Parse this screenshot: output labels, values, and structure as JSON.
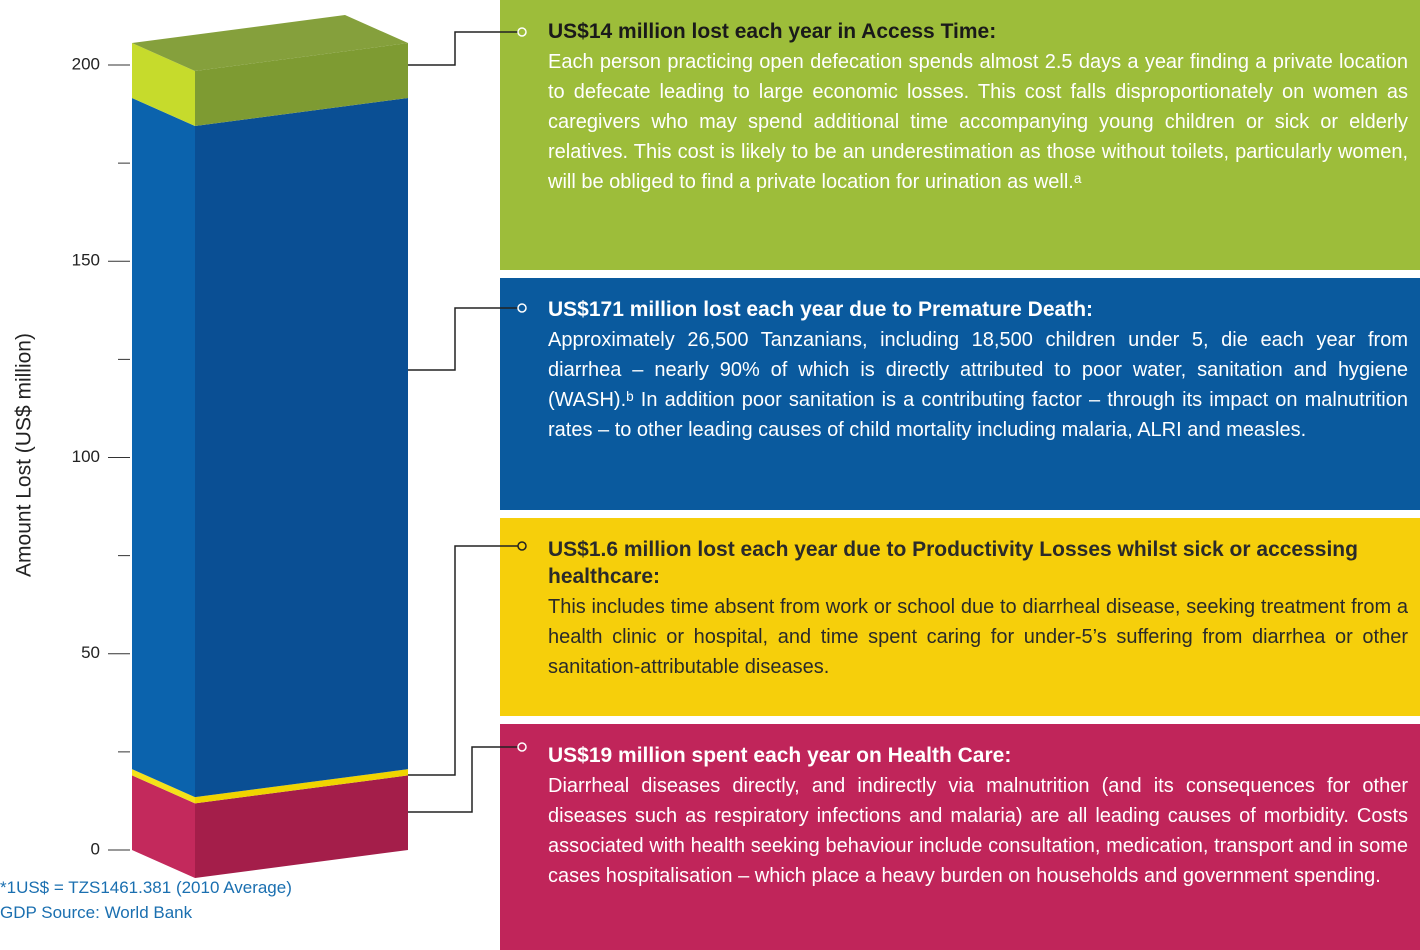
{
  "chart_data": {
    "type": "stacked-bar-3d",
    "y_label": "Amount Lost (US$ million)",
    "values": [
      19,
      1.6,
      171,
      14
    ],
    "colors": [
      [
        "#c3295c",
        "#a41e4a"
      ],
      [
        "#f4e21a",
        "#f0d400"
      ],
      [
        "#0b63ad",
        "#0a4f94"
      ],
      [
        "#c6db2c",
        "#7e9b32"
      ]
    ],
    "ylim": [
      0,
      200
    ],
    "yticks": [
      0,
      50,
      100,
      150,
      200
    ],
    "yticks_minor": [
      25,
      75,
      125,
      175
    ],
    "annotations": [
      {
        "title": "US$14 million lost each year in Access Time:",
        "body": "Each person practicing open defecation spends almost 2.5 days a year finding a private location to defecate leading to large economic losses. This cost falls disproportionately on women as caregivers who may spend additional time accompanying young children or sick or elderly relatives. This cost is likely to be an underestimation as those without toilets, particularly women, will be obliged to find a private location for urination as well.ᵃ"
      },
      {
        "title": "US$171 million lost each year due to Premature Death:",
        "body": "Approximately 26,500 Tanzanians, including 18,500 children under 5, die each year from diarrhea – nearly 90% of which is directly attributed to poor water, sanitation and hygiene (WASH).ᵇ In addition poor sanitation is a contributing factor – through its impact on malnutrition rates – to other leading causes of child mortality including malaria, ALRI and measles."
      },
      {
        "title": "US$1.6 million lost each year due to Productivity Losses whilst sick or accessing healthcare:",
        "body": "This includes time absent from work or school due to diarrheal disease, seeking treatment from a health clinic or hospital, and time spent caring for under-5’s suffering from diarrhea or other sanitation-attributable diseases."
      },
      {
        "title": "US$19 million spent each year on Health Care:",
        "body": "Diarrheal diseases directly, and indirectly via malnutrition (and its consequences for other diseases such as respiratory infections and malaria) are all leading causes of morbidity. Costs associated with health seeking behaviour include consultation, medication, transport and in some cases hospitalisation – which place a heavy burden on households and government spending."
      }
    ],
    "footnotes": [
      "*1US$ = TZS1461.381 (2010 Average)",
      "GDP Source: World Bank"
    ]
  }
}
